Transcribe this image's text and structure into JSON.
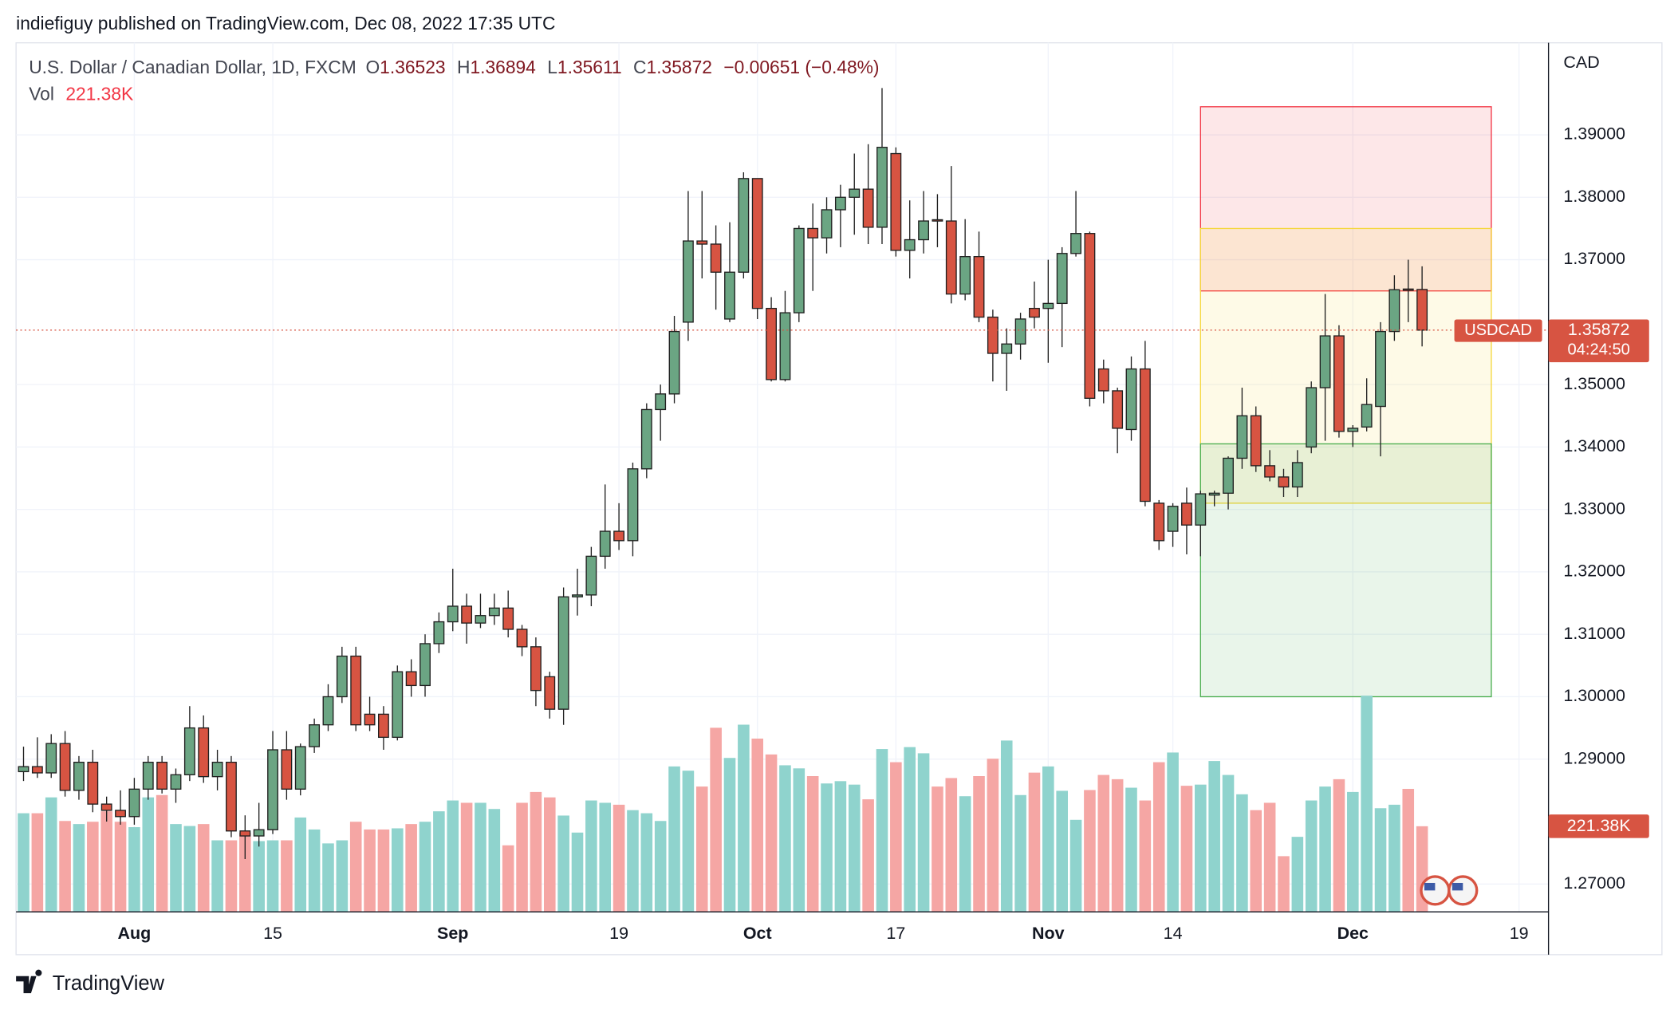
{
  "header": {
    "publisher": "indiefiguy published on TradingView.com, Dec 08, 2022 17:35 UTC",
    "brand": "TradingView"
  },
  "chart_data": {
    "type": "candlestick",
    "symbol": "U.S. Dollar / Canadian Dollar, 1D, FXCM",
    "ohlc_labels": [
      "O",
      "H",
      "L",
      "C"
    ],
    "change": "−0.00651 (−0.48%)",
    "currency": "CAD",
    "ticker": "USDCAD",
    "countdown": "04:24:50",
    "up_color": "#6ba583",
    "down_color": "#d75442",
    "volume_up_color": "#8fd3cd",
    "volume_down_color": "#f5a6a4",
    "open": [
      1.288,
      1.2888,
      1.2878,
      1.2925,
      1.285,
      1.2895,
      1.2828,
      1.2818,
      1.2808,
      1.2852,
      1.2895,
      1.2852,
      1.2875,
      1.295,
      1.2872,
      1.2895,
      1.2785,
      1.2777,
      1.2787,
      1.2915,
      1.2852,
      1.292,
      1.2955,
      1.3,
      1.3065,
      1.2972,
      1.2972,
      1.2935,
      1.304,
      1.3018,
      1.3085,
      1.312,
      1.3145,
      1.3118,
      1.313,
      1.3142,
      1.3108,
      1.308,
      1.3032,
      1.298,
      1.316,
      1.3163,
      1.3225,
      1.3265,
      1.325,
      1.3365,
      1.346,
      1.3485,
      1.36,
      1.373,
      1.3725,
      1.3605,
      1.368,
      1.383,
      1.3622,
      1.3508,
      1.3615,
      1.375,
      1.3735,
      1.378,
      1.38,
      1.3813,
      1.3752,
      1.387,
      1.3715,
      1.3732,
      1.3764,
      1.3762,
      1.3645,
      1.3705,
      1.3608,
      1.355,
      1.3565,
      1.3622,
      1.3622,
      1.363,
      1.371,
      1.3742,
      1.3525,
      1.349,
      1.3428,
      1.3525,
      1.331,
      1.3265,
      1.331,
      1.3275,
      1.3323,
      1.3326,
      1.3382,
      1.345,
      1.337,
      1.3352,
      1.3336,
      1.34,
      1.3495,
      1.3578,
      1.3425,
      1.3432,
      1.3465,
      1.3585,
      1.3653,
      1.36523
    ],
    "high": [
      1.292,
      1.2935,
      1.294,
      1.2945,
      1.2905,
      1.2915,
      1.284,
      1.285,
      1.287,
      1.2905,
      1.2905,
      1.2885,
      1.2985,
      1.297,
      1.2915,
      1.2905,
      1.281,
      1.283,
      1.2945,
      1.2945,
      1.2925,
      1.2965,
      1.302,
      1.308,
      1.308,
      1.3,
      1.2985,
      1.305,
      1.306,
      1.31,
      1.3135,
      1.3205,
      1.3165,
      1.3165,
      1.3165,
      1.317,
      1.3115,
      1.3095,
      1.304,
      1.3175,
      1.3205,
      1.324,
      1.334,
      1.331,
      1.3375,
      1.347,
      1.35,
      1.361,
      1.381,
      1.381,
      1.3755,
      1.376,
      1.384,
      1.383,
      1.364,
      1.365,
      1.3755,
      1.379,
      1.38,
      1.382,
      1.387,
      1.3885,
      1.3975,
      1.388,
      1.3795,
      1.381,
      1.3805,
      1.385,
      1.3765,
      1.3745,
      1.362,
      1.359,
      1.3615,
      1.3665,
      1.37,
      1.372,
      1.381,
      1.3745,
      1.354,
      1.3495,
      1.3545,
      1.357,
      1.3315,
      1.331,
      1.3335,
      1.333,
      1.333,
      1.3385,
      1.3495,
      1.3465,
      1.3395,
      1.3365,
      1.3395,
      1.3505,
      1.3645,
      1.3595,
      1.3435,
      1.351,
      1.36,
      1.3675,
      1.37,
      1.36894
    ],
    "low": [
      1.2865,
      1.287,
      1.287,
      1.284,
      1.2835,
      1.2815,
      1.28,
      1.2795,
      1.2795,
      1.2835,
      1.2845,
      1.283,
      1.2865,
      1.2862,
      1.285,
      1.2775,
      1.274,
      1.276,
      1.278,
      1.2835,
      1.2842,
      1.291,
      1.2945,
      1.299,
      1.2945,
      1.2945,
      1.2915,
      1.293,
      1.3,
      1.3,
      1.307,
      1.3105,
      1.3085,
      1.311,
      1.3115,
      1.3095,
      1.3065,
      1.2985,
      1.2965,
      1.2955,
      1.313,
      1.3145,
      1.3205,
      1.3235,
      1.3225,
      1.335,
      1.341,
      1.347,
      1.357,
      1.367,
      1.362,
      1.36,
      1.367,
      1.3605,
      1.3505,
      1.3505,
      1.36,
      1.365,
      1.371,
      1.372,
      1.374,
      1.3725,
      1.3725,
      1.3705,
      1.367,
      1.371,
      1.372,
      1.363,
      1.3635,
      1.36,
      1.3505,
      1.349,
      1.354,
      1.359,
      1.3535,
      1.356,
      1.3705,
      1.3465,
      1.347,
      1.339,
      1.341,
      1.3305,
      1.3235,
      1.324,
      1.3228,
      1.3225,
      1.3305,
      1.33,
      1.3365,
      1.336,
      1.3345,
      1.332,
      1.332,
      1.339,
      1.341,
      1.3415,
      1.34,
      1.3425,
      1.3385,
      1.357,
      1.36,
      1.35611
    ],
    "close": [
      1.2888,
      1.2878,
      1.2925,
      1.285,
      1.2895,
      1.2828,
      1.2818,
      1.2808,
      1.2852,
      1.2895,
      1.2852,
      1.2875,
      1.295,
      1.2872,
      1.2895,
      1.2785,
      1.2777,
      1.2787,
      1.2915,
      1.2852,
      1.292,
      1.2955,
      1.3,
      1.3065,
      1.2955,
      1.2955,
      1.2935,
      1.304,
      1.3018,
      1.3085,
      1.312,
      1.3145,
      1.3118,
      1.313,
      1.3142,
      1.3108,
      1.308,
      1.301,
      1.298,
      1.316,
      1.3163,
      1.3225,
      1.3265,
      1.325,
      1.3365,
      1.346,
      1.3485,
      1.3585,
      1.373,
      1.3725,
      1.368,
      1.368,
      1.383,
      1.3622,
      1.3508,
      1.3615,
      1.375,
      1.3735,
      1.378,
      1.38,
      1.3813,
      1.3752,
      1.388,
      1.3715,
      1.3732,
      1.3762,
      1.3762,
      1.3645,
      1.3705,
      1.3608,
      1.355,
      1.3565,
      1.3605,
      1.3608,
      1.363,
      1.371,
      1.3742,
      1.3478,
      1.349,
      1.343,
      1.3525,
      1.3313,
      1.325,
      1.3305,
      1.3275,
      1.3325,
      1.3326,
      1.3382,
      1.345,
      1.337,
      1.3352,
      1.3336,
      1.3375,
      1.3495,
      1.3578,
      1.3425,
      1.343,
      1.3468,
      1.3585,
      1.3652,
      1.3651,
      1.35872
    ],
    "volume_label": "Vol",
    "volume": [
      255,
      255,
      296,
      235,
      227,
      233,
      260,
      233,
      219,
      296,
      302,
      227,
      222,
      227,
      185,
      185,
      205,
      183,
      185,
      185,
      244,
      213,
      177,
      185,
      233,
      213,
      213,
      216,
      227,
      233,
      260,
      288,
      282,
      282,
      266,
      172,
      282,
      310,
      296,
      249,
      205,
      288,
      282,
      277,
      263,
      255,
      235,
      376,
      365,
      324,
      476,
      398,
      484,
      448,
      407,
      379,
      371,
      351,
      332,
      338,
      329,
      291,
      421,
      387,
      426,
      410,
      324,
      346,
      299,
      351,
      396,
      443,
      302,
      360,
      376,
      313,
      238,
      315,
      354,
      343,
      321,
      288,
      387,
      412,
      326,
      329,
      390,
      354,
      304,
      263,
      282,
      144,
      194,
      288,
      324,
      343,
      310,
      559,
      268,
      277,
      318,
      221.38
    ],
    "volume_last_label": "221.38K",
    "volume_ylim": [
      0,
      2247
    ],
    "xlim": [
      -0.54,
      110.13
    ],
    "xticks": [
      {
        "value": 8,
        "label": "Aug"
      },
      {
        "value": 18,
        "label": "15"
      },
      {
        "value": 31,
        "label": "Sep"
      },
      {
        "value": 43,
        "label": "19"
      },
      {
        "value": 53,
        "label": "Oct"
      },
      {
        "value": 63,
        "label": "17"
      },
      {
        "value": 74,
        "label": "Nov"
      },
      {
        "value": 83,
        "label": "14"
      },
      {
        "value": 96,
        "label": "Dec"
      },
      {
        "value": 108,
        "label": "19"
      }
    ],
    "ylim": [
      1.26554,
      1.40474
    ],
    "yticks": [
      {
        "value": 1.39,
        "label": "1.39000"
      },
      {
        "value": 1.38,
        "label": "1.38000"
      },
      {
        "value": 1.37,
        "label": "1.37000"
      },
      {
        "value": 1.35,
        "label": "1.35000"
      },
      {
        "value": 1.34,
        "label": "1.34000"
      },
      {
        "value": 1.33,
        "label": "1.33000"
      },
      {
        "value": 1.32,
        "label": "1.32000"
      },
      {
        "value": 1.31,
        "label": "1.31000"
      },
      {
        "value": 1.3,
        "label": "1.30000"
      },
      {
        "value": 1.29,
        "label": "1.29000"
      },
      {
        "value": 1.27,
        "label": "1.27000"
      }
    ],
    "grid": true,
    "zones": [
      {
        "from": 85,
        "to": 106,
        "top": 1.3945,
        "bottom": 1.365,
        "color": "#f23645"
      },
      {
        "from": 85,
        "to": 106,
        "top": 1.375,
        "bottom": 1.331,
        "color": "#f5d73d"
      },
      {
        "from": 85,
        "to": 106,
        "top": 1.3405,
        "bottom": 1.3,
        "color": "#4caf50"
      }
    ]
  }
}
